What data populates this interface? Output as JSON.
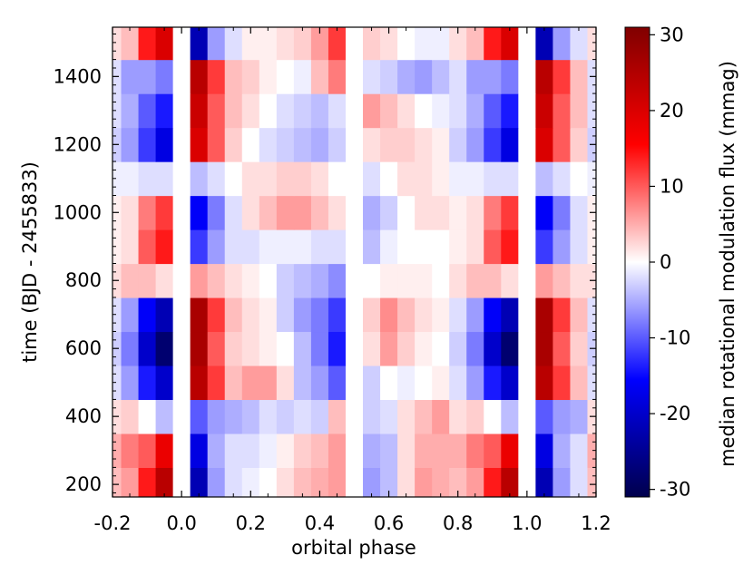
{
  "chart_data": {
    "type": "heatmap",
    "xlabel": "orbital phase",
    "ylabel": "time (BJD - 2455833)",
    "xlim": [
      -0.2,
      1.2
    ],
    "ylim": [
      163,
      1545
    ],
    "x_ticks": [
      -0.2,
      0.0,
      0.2,
      0.4,
      0.6,
      0.8,
      1.0,
      1.2
    ],
    "x_tick_labels": [
      "-0.2",
      "0.0",
      "0.2",
      "0.4",
      "0.6",
      "0.8",
      "1.0",
      "1.2"
    ],
    "y_ticks": [
      200,
      400,
      600,
      800,
      1000,
      1200,
      1400
    ],
    "y_tick_labels": [
      "200",
      "400",
      "600",
      "800",
      "1000",
      "1200",
      "1400"
    ],
    "colorbar": {
      "label": "median rotational modulation flux (mmag)",
      "range": [
        -31,
        31
      ],
      "ticks": [
        30,
        20,
        10,
        0,
        -10,
        -20,
        -30
      ],
      "tick_labels": [
        "30",
        "20",
        "10",
        "0",
        "-10",
        "-20",
        "-30"
      ],
      "colormap": "seismic",
      "colors": {
        "low": "#00004c",
        "mid_low": "#0000ff",
        "zero": "#ffffff",
        "mid_high": "#ff0000",
        "high": "#800000"
      }
    },
    "phase_columns": [
      -0.2,
      -0.15,
      -0.1,
      -0.05,
      0.0,
      0.05,
      0.1,
      0.15,
      0.2,
      0.25,
      0.3,
      0.35,
      0.4,
      0.45,
      0.5,
      0.55,
      0.6,
      0.65,
      0.7,
      0.75,
      0.8,
      0.85,
      0.9,
      0.95,
      1.0,
      1.05,
      1.1,
      1.15,
      1.2
    ],
    "time_rows": [
      200,
      300,
      400,
      500,
      600,
      700,
      800,
      900,
      1000,
      1100,
      1200,
      1300,
      1400,
      1500
    ],
    "flux_grid": [
      [
        4,
        6,
        14,
        24,
        0,
        -22,
        -6,
        -2,
        -1,
        0,
        2,
        4,
        5,
        6,
        0,
        -6,
        -4,
        2,
        6,
        5,
        4,
        6,
        14,
        24,
        0,
        -22,
        -6,
        -2,
        4
      ],
      [
        5,
        8,
        10,
        18,
        0,
        -18,
        -5,
        -2,
        -2,
        -1,
        1,
        3,
        4,
        6,
        0,
        -5,
        -4,
        2,
        5,
        5,
        5,
        8,
        10,
        18,
        0,
        -18,
        -5,
        -2,
        5
      ],
      [
        2,
        3,
        0,
        -4,
        0,
        -10,
        -6,
        -5,
        -4,
        -2,
        -3,
        -2,
        -3,
        4,
        0,
        -3,
        -2,
        2,
        4,
        6,
        2,
        3,
        0,
        -4,
        0,
        -10,
        -6,
        -5,
        2
      ],
      [
        -2,
        -6,
        -14,
        -20,
        0,
        24,
        12,
        4,
        6,
        6,
        2,
        -4,
        -6,
        -10,
        0,
        -3,
        0,
        -1,
        0,
        1,
        -2,
        -6,
        -14,
        -20,
        0,
        24,
        12,
        4,
        -2
      ],
      [
        -3,
        -8,
        -20,
        -28,
        0,
        26,
        10,
        3,
        2,
        1,
        0,
        -4,
        -8,
        -14,
        0,
        2,
        6,
        3,
        1,
        0,
        -3,
        -8,
        -20,
        -28,
        0,
        26,
        10,
        3,
        -3
      ],
      [
        -2,
        -6,
        -16,
        -22,
        0,
        26,
        12,
        4,
        2,
        1,
        -3,
        -6,
        -8,
        -12,
        0,
        3,
        7,
        4,
        2,
        1,
        -2,
        -6,
        -16,
        -22,
        0,
        26,
        12,
        4,
        -2
      ],
      [
        2,
        4,
        4,
        2,
        0,
        6,
        4,
        2,
        1,
        0,
        -3,
        -4,
        -5,
        -7,
        0,
        0,
        1,
        1,
        1,
        0,
        2,
        4,
        4,
        2,
        0,
        6,
        4,
        2,
        2
      ],
      [
        1,
        2,
        10,
        14,
        0,
        -12,
        -6,
        -2,
        -2,
        -1,
        -1,
        -1,
        -2,
        -2,
        0,
        -4,
        -1,
        0,
        0,
        0,
        1,
        2,
        10,
        14,
        0,
        -12,
        -6,
        -2,
        1
      ],
      [
        1,
        2,
        8,
        12,
        0,
        -16,
        -8,
        -2,
        2,
        4,
        6,
        6,
        4,
        2,
        0,
        -5,
        -3,
        0,
        2,
        2,
        1,
        2,
        8,
        12,
        0,
        -16,
        -8,
        -2,
        1
      ],
      [
        -1,
        -1,
        -2,
        -2,
        0,
        -4,
        -2,
        0,
        2,
        2,
        3,
        3,
        2,
        0,
        0,
        -2,
        0,
        2,
        2,
        1,
        -1,
        -1,
        -2,
        -2,
        0,
        -4,
        -2,
        0,
        -1
      ],
      [
        -3,
        -6,
        -12,
        -18,
        0,
        20,
        10,
        3,
        0,
        -2,
        -3,
        -4,
        -5,
        -3,
        0,
        2,
        3,
        3,
        2,
        1,
        -3,
        -6,
        -12,
        -18,
        0,
        20,
        10,
        3,
        -3
      ],
      [
        -2,
        -5,
        -10,
        -14,
        0,
        22,
        10,
        4,
        2,
        0,
        -2,
        -3,
        -4,
        -2,
        0,
        6,
        4,
        2,
        0,
        -1,
        -2,
        -5,
        -10,
        -14,
        0,
        22,
        10,
        4,
        -2
      ],
      [
        -2,
        -6,
        -6,
        -8,
        0,
        24,
        12,
        4,
        3,
        1,
        0,
        -1,
        4,
        8,
        0,
        -2,
        -3,
        -5,
        -6,
        -4,
        -2,
        -6,
        -6,
        -8,
        0,
        24,
        12,
        4,
        -2
      ],
      [
        2,
        4,
        14,
        20,
        0,
        -22,
        -6,
        -2,
        1,
        1,
        2,
        3,
        6,
        12,
        0,
        3,
        2,
        0,
        -1,
        -1,
        2,
        4,
        14,
        20,
        0,
        -22,
        -6,
        -2,
        2
      ]
    ]
  }
}
